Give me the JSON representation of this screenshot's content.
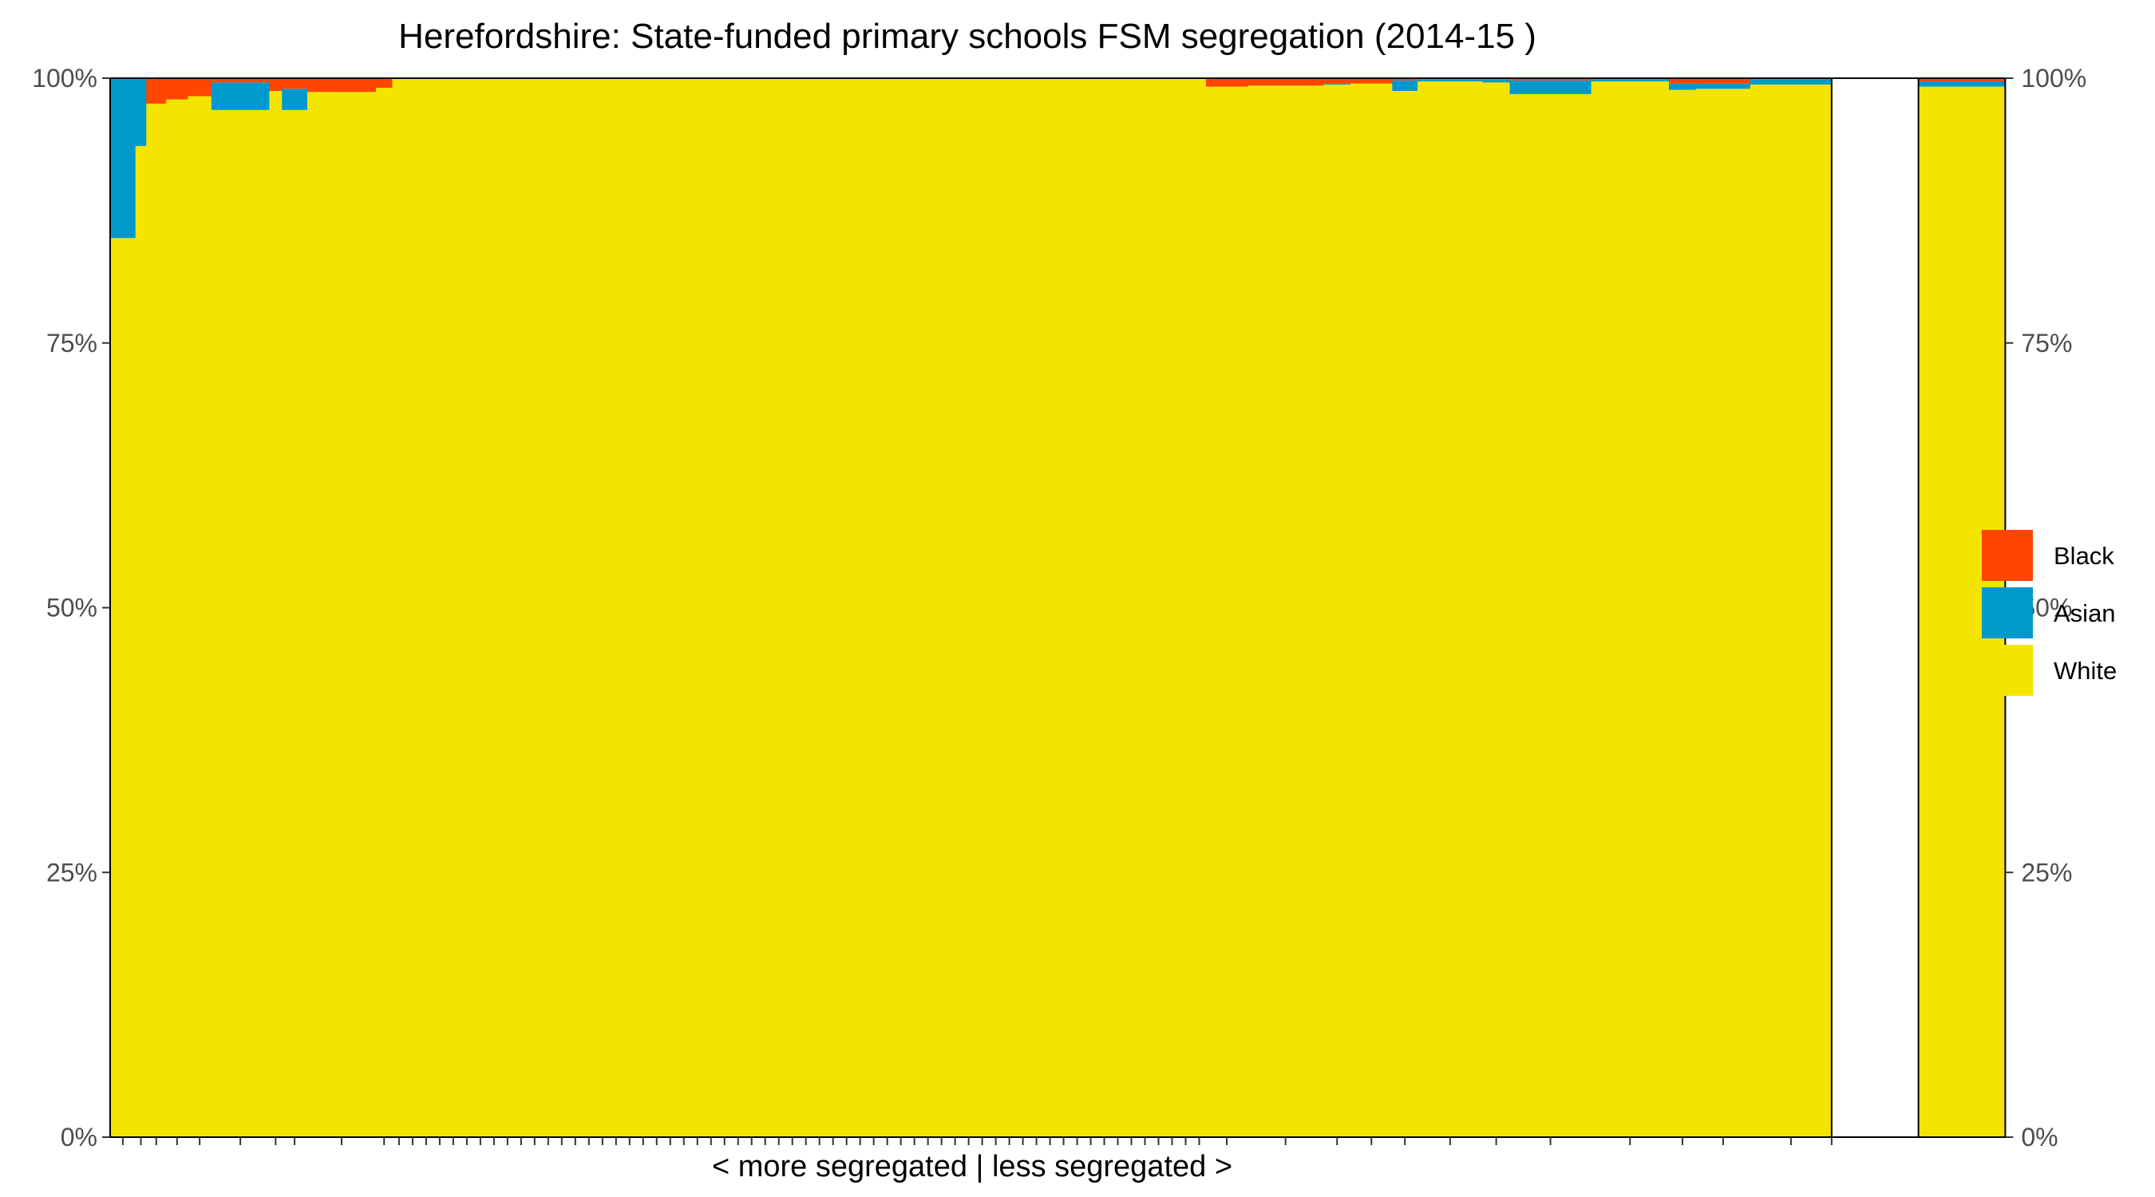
{
  "chart_data": {
    "type": "bar",
    "stacked": true,
    "normalized": true,
    "title": "Herefordshire: State-funded primary schools FSM segregation (2014-15 )",
    "xlabel": "< more segregated | less segregated >",
    "ylabel": "",
    "ylim": [
      0,
      1
    ],
    "y_ticks": [
      {
        "value": 0,
        "label": "0%"
      },
      {
        "value": 0.25,
        "label": "25%"
      },
      {
        "value": 0.5,
        "label": "50%"
      },
      {
        "value": 0.75,
        "label": "75%"
      },
      {
        "value": 1,
        "label": "100%"
      }
    ],
    "secondary_y_axis": true,
    "grid": false,
    "legend_position": "right",
    "legend": [
      {
        "name": "Black",
        "color": "#FF4500"
      },
      {
        "name": "Asian",
        "color": "#0099CC"
      },
      {
        "name": "White",
        "color": "#F5E400"
      }
    ],
    "x_axis_total": 96,
    "gap_width": 4.8,
    "schools": [
      {
        "w": 1.4,
        "white": 0.849,
        "asian": 0.151,
        "black": 0.0
      },
      {
        "w": 0.6,
        "white": 0.936,
        "asian": 0.064,
        "black": 0.0
      },
      {
        "w": 1.1,
        "white": 0.976,
        "asian": 0.0,
        "black": 0.024
      },
      {
        "w": 1.2,
        "white": 0.98,
        "asian": 0.0,
        "black": 0.02
      },
      {
        "w": 1.3,
        "white": 0.983,
        "asian": 0.0,
        "black": 0.017
      },
      {
        "w": 3.2,
        "white": 0.97,
        "asian": 0.026,
        "black": 0.004
      },
      {
        "w": 0.7,
        "white": 0.988,
        "asian": 0.0,
        "black": 0.012
      },
      {
        "w": 1.4,
        "white": 0.97,
        "asian": 0.02,
        "black": 0.01
      },
      {
        "w": 3.8,
        "white": 0.987,
        "asian": 0.0,
        "black": 0.013
      },
      {
        "w": 0.9,
        "white": 0.991,
        "asian": 0.0,
        "black": 0.009
      },
      {
        "w": 45.0,
        "white": 1.0,
        "asian": 0.0,
        "black": 0.0
      },
      {
        "w": 2.3,
        "white": 0.992,
        "asian": 0.0,
        "black": 0.008
      },
      {
        "w": 4.2,
        "white": 0.993,
        "asian": 0.0,
        "black": 0.007
      },
      {
        "w": 1.5,
        "white": 0.994,
        "asian": 0.001,
        "black": 0.005
      },
      {
        "w": 2.3,
        "white": 0.995,
        "asian": 0.0,
        "black": 0.005
      },
      {
        "w": 1.4,
        "white": 0.988,
        "asian": 0.01,
        "black": 0.002
      },
      {
        "w": 3.6,
        "white": 0.997,
        "asian": 0.002,
        "black": 0.001
      },
      {
        "w": 1.5,
        "white": 0.996,
        "asian": 0.003,
        "black": 0.001
      },
      {
        "w": 4.5,
        "white": 0.985,
        "asian": 0.013,
        "black": 0.002
      },
      {
        "w": 4.3,
        "white": 0.997,
        "asian": 0.002,
        "black": 0.001
      },
      {
        "w": 1.5,
        "white": 0.989,
        "asian": 0.006,
        "black": 0.005
      },
      {
        "w": 3.0,
        "white": 0.99,
        "asian": 0.005,
        "black": 0.005
      },
      {
        "w": 4.5,
        "white": 0.994,
        "asian": 0.005,
        "black": 0.001
      }
    ],
    "summary_bar": {
      "w": 4.8,
      "white": 0.992,
      "asian": 0.005,
      "black": 0.003
    },
    "x_ticks_per_school": 1
  }
}
